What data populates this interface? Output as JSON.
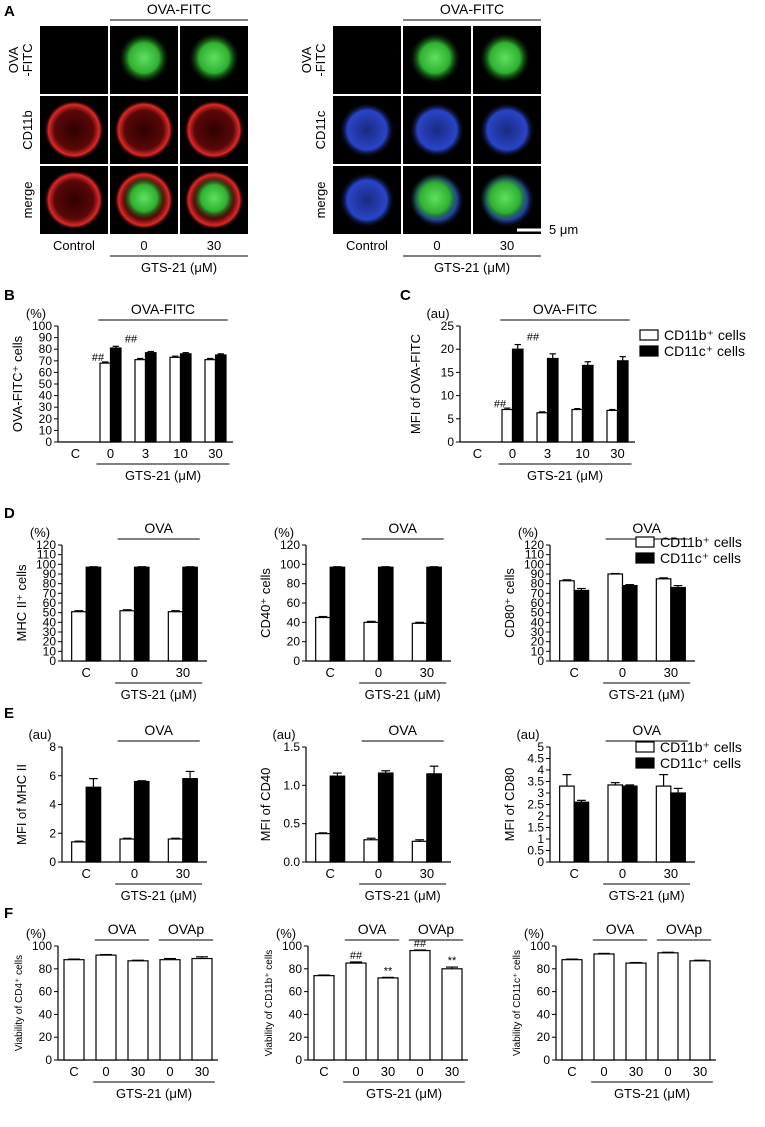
{
  "panel_letters": {
    "A": "A",
    "B": "B",
    "C": "C",
    "D": "D",
    "E": "E",
    "F": "F"
  },
  "micrographs": {
    "left": {
      "header": "OVA-FITC",
      "rows": [
        "OVA",
        "-FITC",
        "CD11b",
        "merge"
      ],
      "cols": [
        "Control",
        "0",
        "30"
      ],
      "xlabel": "GTS-21 (μM)",
      "stain_colors": {
        "ova": "#39c43a",
        "marker": "#d42020"
      }
    },
    "right": {
      "header": "OVA-FITC",
      "rows": [
        "OVA",
        "-FITC",
        "CD11c",
        "merge"
      ],
      "cols": [
        "Control",
        "0",
        "30"
      ],
      "xlabel": "GTS-21 (μM)",
      "scalebar": "5 μm",
      "stain_colors": {
        "ova": "#39c43a",
        "marker": "#2a40c8"
      }
    }
  },
  "legends": {
    "cd11b": "CD11b⁺ cells",
    "cd11c": "CD11c⁺ cells"
  },
  "chart_data": [
    {
      "id": "B",
      "type": "bar",
      "unit": "(%)",
      "ylabel": "OVA-FITC⁺ cells",
      "group_label": "OVA-FITC",
      "xlabel": "GTS-21 (μM)",
      "categories": [
        "C",
        "0",
        "3",
        "10",
        "30"
      ],
      "ylim": [
        0,
        100
      ],
      "yticks": [
        0,
        10,
        20,
        30,
        40,
        50,
        60,
        70,
        80,
        90,
        100
      ],
      "series": [
        {
          "name": "CD11b⁺ cells",
          "style": "open",
          "values": [
            0,
            68,
            71,
            73,
            71
          ],
          "errors": [
            0,
            1,
            1,
            1,
            1
          ],
          "marks": [
            "",
            "##",
            "",
            "",
            ""
          ]
        },
        {
          "name": "CD11c⁺ cells",
          "style": "filled",
          "values": [
            0,
            81,
            77,
            76,
            75
          ],
          "errors": [
            0,
            1.5,
            1,
            1,
            1
          ],
          "marks": [
            "",
            "##",
            "",
            "",
            ""
          ]
        }
      ]
    },
    {
      "id": "C",
      "type": "bar",
      "unit": "(au)",
      "ylabel": "MFI of OVA-FITC",
      "group_label": "OVA-FITC",
      "xlabel": "GTS-21 (μM)",
      "categories": [
        "C",
        "0",
        "3",
        "10",
        "30"
      ],
      "ylim": [
        0,
        25
      ],
      "yticks": [
        0,
        5,
        10,
        15,
        20,
        25
      ],
      "series": [
        {
          "name": "CD11b⁺ cells",
          "style": "open",
          "values": [
            0,
            7,
            6.3,
            7,
            6.8
          ],
          "errors": [
            0,
            0.3,
            0.2,
            0.2,
            0.2
          ],
          "marks": [
            "",
            "##",
            "",
            "",
            ""
          ]
        },
        {
          "name": "CD11c⁺ cells",
          "style": "filled",
          "values": [
            0,
            20,
            18,
            16.5,
            17.5
          ],
          "errors": [
            0,
            1,
            1,
            0.8,
            0.9
          ],
          "marks": [
            "",
            "##",
            "",
            "",
            ""
          ]
        }
      ]
    },
    {
      "id": "D1",
      "type": "bar",
      "unit": "(%)",
      "ylabel": "MHC II⁺ cells",
      "group_label": "OVA",
      "xlabel": "GTS-21 (μM)",
      "categories": [
        "C",
        "0",
        "30"
      ],
      "ylim": [
        0,
        120
      ],
      "yticks": [
        0,
        10,
        20,
        30,
        40,
        50,
        60,
        70,
        80,
        90,
        100,
        110,
        120
      ],
      "series": [
        {
          "name": "CD11b⁺ cells",
          "style": "open",
          "values": [
            51,
            52,
            51
          ],
          "errors": [
            1,
            1,
            1
          ]
        },
        {
          "name": "CD11c⁺ cells",
          "style": "filled",
          "values": [
            97,
            97,
            97
          ],
          "errors": [
            0.5,
            0.5,
            0.5
          ]
        }
      ]
    },
    {
      "id": "D2",
      "type": "bar",
      "unit": "(%)",
      "ylabel": "CD40⁺ cells",
      "group_label": "OVA",
      "xlabel": "GTS-21 (μM)",
      "categories": [
        "C",
        "0",
        "30"
      ],
      "ylim": [
        0,
        120
      ],
      "yticks": [
        0,
        20,
        40,
        60,
        80,
        100,
        120
      ],
      "series": [
        {
          "name": "CD11b⁺ cells",
          "style": "open",
          "values": [
            45,
            40,
            39
          ],
          "errors": [
            1,
            1,
            1
          ]
        },
        {
          "name": "CD11c⁺ cells",
          "style": "filled",
          "values": [
            97,
            97,
            97
          ],
          "errors": [
            0.5,
            0.5,
            0.5
          ]
        }
      ]
    },
    {
      "id": "D3",
      "type": "bar",
      "unit": "(%)",
      "ylabel": "CD80⁺ cells",
      "group_label": "OVA",
      "xlabel": "GTS-21 (μM)",
      "categories": [
        "C",
        "0",
        "30"
      ],
      "ylim": [
        0,
        120
      ],
      "yticks": [
        0,
        10,
        20,
        30,
        40,
        50,
        60,
        70,
        80,
        90,
        100,
        110,
        120
      ],
      "series": [
        {
          "name": "CD11b⁺ cells",
          "style": "open",
          "values": [
            83,
            90,
            85
          ],
          "errors": [
            1,
            0.5,
            1
          ]
        },
        {
          "name": "CD11c⁺ cells",
          "style": "filled",
          "values": [
            73,
            78,
            76
          ],
          "errors": [
            2,
            1,
            2
          ]
        }
      ]
    },
    {
      "id": "E1",
      "type": "bar",
      "unit": "(au)",
      "ylabel": "MFI of MHC II",
      "group_label": "OVA",
      "xlabel": "GTS-21 (μM)",
      "categories": [
        "C",
        "0",
        "30"
      ],
      "ylim": [
        0,
        8
      ],
      "yticks": [
        0,
        2,
        4,
        6,
        8
      ],
      "series": [
        {
          "name": "CD11b⁺ cells",
          "style": "open",
          "values": [
            1.4,
            1.6,
            1.6
          ],
          "errors": [
            0.05,
            0.05,
            0.05
          ]
        },
        {
          "name": "CD11c⁺ cells",
          "style": "filled",
          "values": [
            5.2,
            5.6,
            5.8
          ],
          "errors": [
            0.6,
            0.05,
            0.5
          ]
        }
      ]
    },
    {
      "id": "E2",
      "type": "bar",
      "unit": "(au)",
      "ylabel": "MFI of CD40",
      "group_label": "OVA",
      "xlabel": "GTS-21 (μM)",
      "categories": [
        "C",
        "0",
        "30"
      ],
      "ylim": [
        0,
        1.5
      ],
      "yticks": [
        0,
        0.5,
        1.0,
        1.5
      ],
      "series": [
        {
          "name": "CD11b⁺ cells",
          "style": "open",
          "values": [
            0.37,
            0.29,
            0.27
          ],
          "errors": [
            0.01,
            0.02,
            0.02
          ]
        },
        {
          "name": "CD11c⁺ cells",
          "style": "filled",
          "values": [
            1.12,
            1.16,
            1.15
          ],
          "errors": [
            0.04,
            0.03,
            0.1
          ]
        }
      ]
    },
    {
      "id": "E3",
      "type": "bar",
      "unit": "(au)",
      "ylabel": "MFI of CD80",
      "group_label": "OVA",
      "xlabel": "GTS-21 (μM)",
      "categories": [
        "C",
        "0",
        "30"
      ],
      "ylim": [
        0,
        5
      ],
      "yticks": [
        0,
        0.5,
        1,
        1.5,
        2,
        2.5,
        3,
        3.5,
        4,
        4.5,
        5
      ],
      "series": [
        {
          "name": "CD11b⁺ cells",
          "style": "open",
          "values": [
            3.3,
            3.35,
            3.3
          ],
          "errors": [
            0.5,
            0.1,
            0.5
          ]
        },
        {
          "name": "CD11c⁺ cells",
          "style": "filled",
          "values": [
            2.6,
            3.3,
            3.0
          ],
          "errors": [
            0.08,
            0.05,
            0.2
          ]
        }
      ]
    },
    {
      "id": "F1",
      "type": "bar",
      "unit": "(%)",
      "ylabel": "Viability of CD4⁺ cells",
      "group_labels": [
        "OVA",
        "OVAp"
      ],
      "xlabel": "GTS-21 (μM)",
      "categories": [
        "C",
        "0",
        "30",
        "0",
        "30"
      ],
      "ylim": [
        0,
        100
      ],
      "yticks": [
        0,
        20,
        40,
        60,
        80,
        100
      ],
      "series": [
        {
          "name": "",
          "style": "open",
          "values": [
            88,
            92,
            87,
            88,
            89
          ],
          "errors": [
            0.5,
            0.5,
            0.5,
            1,
            1.5
          ],
          "marks": [
            "",
            "",
            "",
            "",
            ""
          ]
        }
      ]
    },
    {
      "id": "F2",
      "type": "bar",
      "unit": "(%)",
      "ylabel": "Viability of CD11b⁺ cells",
      "group_labels": [
        "OVA",
        "OVAp"
      ],
      "xlabel": "GTS-21 (μM)",
      "categories": [
        "C",
        "0",
        "30",
        "0",
        "30"
      ],
      "ylim": [
        0,
        100
      ],
      "yticks": [
        0,
        20,
        40,
        60,
        80,
        100
      ],
      "series": [
        {
          "name": "",
          "style": "open",
          "values": [
            74,
            85,
            72,
            96,
            80
          ],
          "errors": [
            0.5,
            1,
            0.5,
            0.5,
            1.5
          ],
          "marks": [
            "",
            "##",
            "**",
            "##",
            "**"
          ]
        }
      ]
    },
    {
      "id": "F3",
      "type": "bar",
      "unit": "(%)",
      "ylabel": "Viability of CD11c⁺ cells",
      "group_labels": [
        "OVA",
        "OVAp"
      ],
      "xlabel": "GTS-21 (μM)",
      "categories": [
        "C",
        "0",
        "30",
        "0",
        "30"
      ],
      "ylim": [
        0,
        100
      ],
      "yticks": [
        0,
        20,
        40,
        60,
        80,
        100
      ],
      "series": [
        {
          "name": "",
          "style": "open",
          "values": [
            88,
            93,
            85,
            94,
            87
          ],
          "errors": [
            0.5,
            0.5,
            0.5,
            0.5,
            0.5
          ],
          "marks": [
            "",
            "",
            "",
            "",
            ""
          ]
        }
      ]
    }
  ]
}
